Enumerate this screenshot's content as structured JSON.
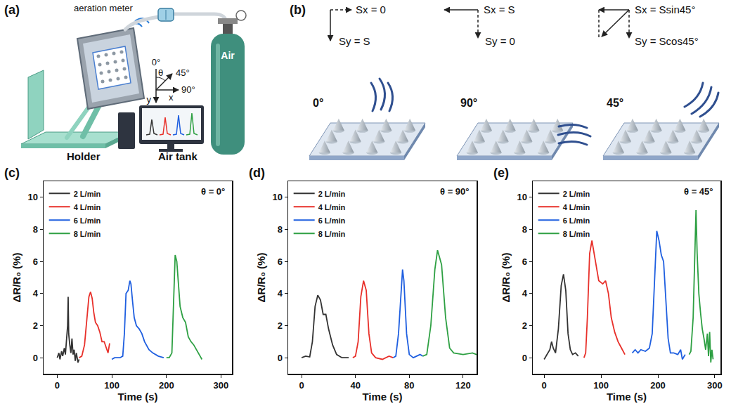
{
  "panels": {
    "a": {
      "label": "(a)",
      "aeration_meter": "aeration meter",
      "tank_text": "Air",
      "air_tank": "Air tank",
      "holder": "Holder",
      "angles": {
        "zero": "0°",
        "theta": "θ",
        "forty_five": "45°",
        "ninety": "90°",
        "y": "y",
        "x": "x"
      }
    },
    "b": {
      "label": "(b)",
      "columns": [
        {
          "angle": "0°",
          "sx": "Sx = 0",
          "sy": "Sy = S"
        },
        {
          "angle": "90°",
          "sx": "Sx = S",
          "sy": "Sy = 0"
        },
        {
          "angle": "45°",
          "sx": "Sx = Ssin45°",
          "sy": "Sy = Scos45°"
        }
      ]
    }
  },
  "chart_data": [
    {
      "type": "line",
      "label": "(c)",
      "annotation": "θ = 0°",
      "x_label": "Time (s)",
      "y_label": "ΔR/R₀ (%)",
      "xlim": [
        -25,
        320
      ],
      "xticks": [
        0,
        100,
        200,
        300
      ],
      "ylim": [
        -1,
        11
      ],
      "yticks": [
        0,
        2,
        4,
        6,
        8,
        10
      ],
      "grid": false,
      "legend": "top-left",
      "series": [
        {
          "name": "2 L/min",
          "color": "#333333",
          "x": [
            0,
            3,
            5,
            8,
            10,
            13,
            15,
            17,
            19,
            20,
            21,
            23,
            25,
            27,
            29,
            31,
            33,
            35,
            38,
            40
          ],
          "values": [
            0,
            0.3,
            -0.1,
            0.4,
            0.1,
            0.6,
            0.2,
            1.0,
            2.0,
            3.8,
            1.5,
            0.8,
            0.3,
            1.2,
            0.2,
            0.5,
            -0.2,
            0.3,
            -0.3,
            -0.1
          ]
        },
        {
          "name": "4 L/min",
          "color": "#e8302a",
          "x": [
            40,
            45,
            50,
            55,
            58,
            61,
            64,
            67,
            70,
            74,
            78,
            82,
            86,
            90,
            93,
            96
          ],
          "values": [
            0,
            0.1,
            0.8,
            2.8,
            3.8,
            4.1,
            3.7,
            2.8,
            2.2,
            2.0,
            1.6,
            1.0,
            1.0,
            0.6,
            0.3,
            0.9
          ]
        },
        {
          "name": "6 L/min",
          "color": "#1f5fe0",
          "x": [
            100,
            105,
            110,
            115,
            120,
            123,
            126,
            130,
            133,
            135,
            138,
            141,
            145,
            150,
            155,
            160,
            168,
            175,
            185,
            195
          ],
          "values": [
            -0.1,
            0,
            0,
            0,
            0.1,
            1.5,
            4.0,
            4.2,
            4.8,
            4.6,
            3.5,
            2.5,
            2.0,
            1.8,
            1.5,
            1.0,
            0.5,
            0.3,
            0.1,
            0
          ]
        },
        {
          "name": "8 L/min",
          "color": "#2ea043",
          "x": [
            200,
            205,
            210,
            213,
            216,
            219,
            222,
            225,
            230,
            235,
            240,
            245,
            250,
            255,
            260,
            265
          ],
          "values": [
            0,
            0,
            0.3,
            3.0,
            6.4,
            6.0,
            4.5,
            3.2,
            2.5,
            2.2,
            1.3,
            1.0,
            0.8,
            0.5,
            0.2,
            -0.1
          ]
        }
      ]
    },
    {
      "type": "line",
      "label": "(d)",
      "annotation": "θ = 90°",
      "x_label": "Time (s)",
      "y_label": "ΔR/R₀ (%)",
      "xlim": [
        -10,
        130
      ],
      "xticks": [
        0,
        40,
        80,
        120
      ],
      "ylim": [
        -1,
        11
      ],
      "yticks": [
        0,
        2,
        4,
        6,
        8,
        10
      ],
      "grid": false,
      "legend": "top-left",
      "series": [
        {
          "name": "2 L/min",
          "color": "#333333",
          "x": [
            0,
            3,
            6,
            8,
            10,
            12,
            14,
            16,
            18,
            20,
            23,
            26,
            30,
            35
          ],
          "values": [
            0,
            0.1,
            0.05,
            1.0,
            3.2,
            3.9,
            3.6,
            2.7,
            2.7,
            1.8,
            0.8,
            0.2,
            0,
            0
          ]
        },
        {
          "name": "4 L/min",
          "color": "#e8302a",
          "x": [
            38,
            40,
            42,
            44,
            46,
            48,
            50,
            52,
            55,
            60,
            65,
            68
          ],
          "values": [
            0,
            0.1,
            1.0,
            3.8,
            4.8,
            4.2,
            1.5,
            0.3,
            0,
            -0.1,
            0.1,
            0
          ]
        },
        {
          "name": "6 L/min",
          "color": "#1f5fe0",
          "x": [
            68,
            70,
            72,
            74,
            75,
            76,
            78,
            80,
            83,
            88,
            90
          ],
          "values": [
            0,
            0.1,
            1.5,
            4.5,
            5.5,
            4.8,
            1.5,
            0.2,
            0,
            0.2,
            0.1
          ]
        },
        {
          "name": "8 L/min",
          "color": "#2ea043",
          "x": [
            90,
            93,
            96,
            99,
            101,
            104,
            107,
            110,
            113,
            120,
            127,
            130
          ],
          "values": [
            0.1,
            0.2,
            2.0,
            5.5,
            6.7,
            5.8,
            2.5,
            0.6,
            0.3,
            0.2,
            0.3,
            0.2
          ]
        }
      ]
    },
    {
      "type": "line",
      "label": "(e)",
      "annotation": "θ = 45°",
      "x_label": "Time (s)",
      "y_label": "ΔR/R₀ (%)",
      "xlim": [
        -20,
        310
      ],
      "xticks": [
        0,
        100,
        200,
        300
      ],
      "ylim": [
        -1,
        11
      ],
      "yticks": [
        0,
        2,
        4,
        6,
        8,
        10
      ],
      "grid": false,
      "legend": "top-left",
      "series": [
        {
          "name": "2 L/min",
          "color": "#333333",
          "x": [
            0,
            5,
            10,
            13,
            16,
            20,
            25,
            30,
            34,
            38,
            42,
            46,
            50,
            55,
            60
          ],
          "values": [
            -0.1,
            0.2,
            0.5,
            1.0,
            0.6,
            0.3,
            1.8,
            4.5,
            5.2,
            4.2,
            1.5,
            0.5,
            0.2,
            0.3,
            0.1
          ]
        },
        {
          "name": "4 L/min",
          "color": "#e8302a",
          "x": [
            70,
            73,
            76,
            80,
            84,
            90,
            96,
            103,
            108,
            113,
            118,
            124,
            130,
            136,
            142
          ],
          "values": [
            0,
            0.3,
            2.5,
            6.5,
            7.3,
            6.0,
            4.8,
            4.6,
            4.8,
            4.0,
            2.5,
            1.6,
            1.0,
            0.6,
            0.2
          ]
        },
        {
          "name": "6 L/min",
          "color": "#1f5fe0",
          "x": [
            155,
            160,
            165,
            170,
            178,
            185,
            190,
            194,
            198,
            202,
            206,
            210,
            214,
            218,
            222,
            228,
            235,
            240,
            243,
            248
          ],
          "values": [
            0.3,
            0.5,
            0.3,
            0.5,
            0.4,
            0.6,
            1.5,
            5.0,
            7.9,
            7.3,
            6.4,
            6.0,
            3.5,
            1.2,
            0.3,
            0.3,
            0.2,
            0.5,
            -0.1,
            0.2
          ]
        },
        {
          "name": "8 L/min",
          "color": "#2ea043",
          "x": [
            255,
            258,
            262,
            265,
            267,
            269,
            272,
            275,
            278,
            281,
            284,
            287,
            289,
            291,
            293,
            295,
            297
          ],
          "values": [
            0.2,
            0.4,
            2.5,
            6.5,
            9.2,
            6.5,
            4.0,
            2.8,
            1.8,
            1.2,
            0.5,
            1.5,
            0.1,
            1.6,
            -0.3,
            0.5,
            -0.1
          ]
        }
      ]
    }
  ]
}
